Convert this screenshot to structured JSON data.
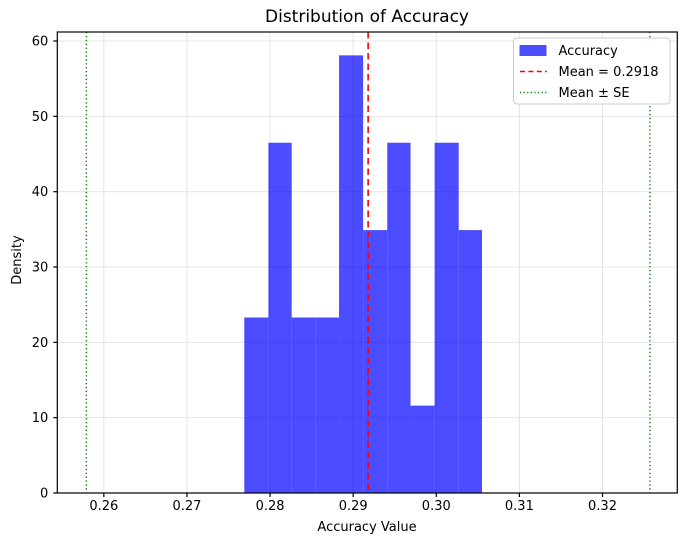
{
  "title": "Distribution of Accuracy",
  "xlabel": "Accuracy Value",
  "ylabel": "Density",
  "legend": {
    "items": [
      {
        "label": "Accuracy",
        "marker": "blue-filled-patch"
      },
      {
        "label": "Mean = 0.2918",
        "marker": "red-dashed-line"
      },
      {
        "label": "Mean ± SE",
        "marker": "green-dotted-line"
      }
    ]
  },
  "colors": {
    "bar": "#0000FF",
    "bar_alpha": 0.7,
    "mean_line": "#FF0000",
    "se_line": "#008000",
    "grid": "#E4E4E4",
    "spine": "#000000",
    "legend_border": "#CCCCCC",
    "legend_bg": "#FFFFFF"
  },
  "chart_data": {
    "type": "bar",
    "subtype": "histogram",
    "title": "Distribution of Accuracy",
    "xlabel": "Accuracy Value",
    "ylabel": "Density",
    "grid": true,
    "legend_position": "upper right",
    "n_samples": 30,
    "bin_edges": [
      0.2769,
      0.2798,
      0.2826,
      0.2855,
      0.2883,
      0.2912,
      0.2941,
      0.2969,
      0.2998,
      0.3027,
      0.3055
    ],
    "densities": [
      23.3,
      46.5,
      23.3,
      23.3,
      58.1,
      34.9,
      46.5,
      11.6,
      46.5,
      34.9
    ],
    "counts": [
      2,
      4,
      2,
      2,
      5,
      3,
      4,
      1,
      4,
      3
    ],
    "mean": 0.2918,
    "se": 0.0339,
    "se_lines": [
      0.2579,
      0.3257
    ],
    "xlim": [
      0.2544,
      0.329
    ],
    "ylim": [
      0,
      61.2
    ],
    "xticks": [
      0.26,
      0.27,
      0.28,
      0.29,
      0.3,
      0.31,
      0.32
    ],
    "xtick_labels": [
      "0.26",
      "0.27",
      "0.28",
      "0.29",
      "0.30",
      "0.31",
      "0.32"
    ],
    "yticks": [
      0,
      10,
      20,
      30,
      40,
      50,
      60
    ],
    "ytick_labels": [
      "0",
      "10",
      "20",
      "30",
      "40",
      "50",
      "60"
    ]
  }
}
